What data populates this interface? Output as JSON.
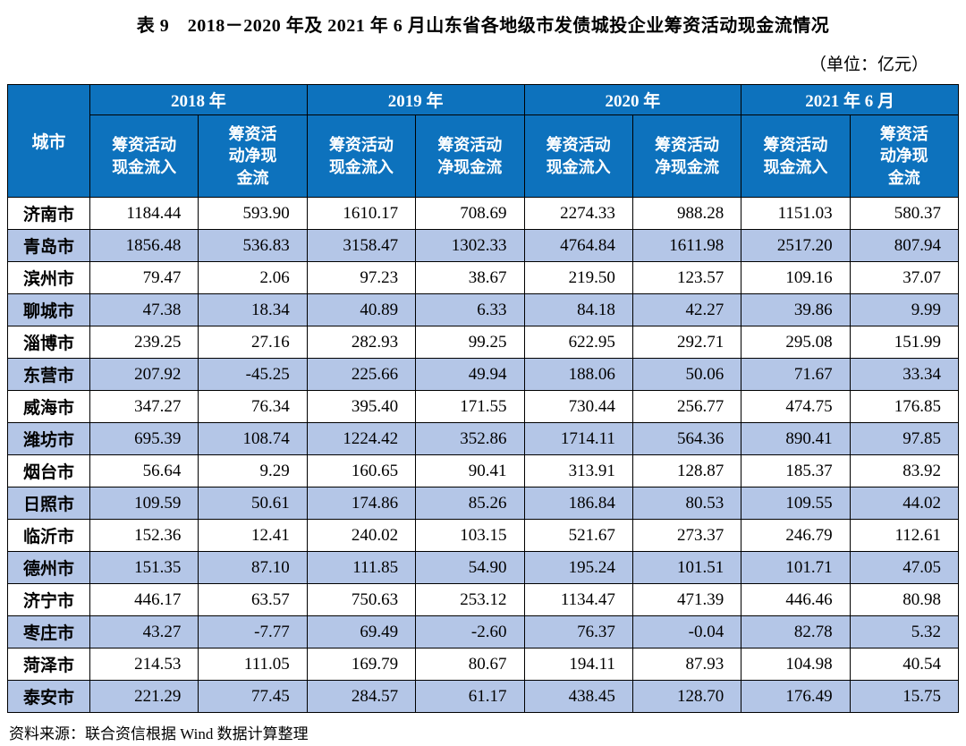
{
  "title": "表 9　2018－2020 年及 2021 年 6 月山东省各地级市发债城投企业筹资活动现金流情况",
  "unit_note": "（单位：亿元）",
  "source_note": "资料来源：联合资信根据 Wind 数据计算整理",
  "colors": {
    "header_bg": "#0d72bd",
    "stripe_bg": "#b4c6e7",
    "border": "#000000",
    "header_text": "#ffffff",
    "body_text": "#000000"
  },
  "table": {
    "city_header": "城市",
    "year_groups": [
      {
        "label": "2018 年",
        "sub_labels": [
          "筹资活动\n现金流入",
          "筹资活\n动净现\n金流"
        ]
      },
      {
        "label": "2019 年",
        "sub_labels": [
          "筹资活动\n现金流入",
          "筹资活动\n净现金流"
        ]
      },
      {
        "label": "2020 年",
        "sub_labels": [
          "筹资活动\n现金流入",
          "筹资活动\n净现金流"
        ]
      },
      {
        "label": "2021 年 6 月",
        "sub_labels": [
          "筹资活动\n现金流入",
          "筹资活\n动净现\n金流"
        ]
      }
    ],
    "rows": [
      {
        "city": "济南市",
        "values": [
          "1184.44",
          "593.90",
          "1610.17",
          "708.69",
          "2274.33",
          "988.28",
          "1151.03",
          "580.37"
        ]
      },
      {
        "city": "青岛市",
        "values": [
          "1856.48",
          "536.83",
          "3158.47",
          "1302.33",
          "4764.84",
          "1611.98",
          "2517.20",
          "807.94"
        ]
      },
      {
        "city": "滨州市",
        "values": [
          "79.47",
          "2.06",
          "97.23",
          "38.67",
          "219.50",
          "123.57",
          "109.16",
          "37.07"
        ]
      },
      {
        "city": "聊城市",
        "values": [
          "47.38",
          "18.34",
          "40.89",
          "6.33",
          "84.18",
          "42.27",
          "39.86",
          "9.99"
        ]
      },
      {
        "city": "淄博市",
        "values": [
          "239.25",
          "27.16",
          "282.93",
          "99.25",
          "622.95",
          "292.71",
          "295.08",
          "151.99"
        ]
      },
      {
        "city": "东营市",
        "values": [
          "207.92",
          "-45.25",
          "225.66",
          "49.94",
          "188.06",
          "50.06",
          "71.67",
          "33.34"
        ]
      },
      {
        "city": "威海市",
        "values": [
          "347.27",
          "76.34",
          "395.40",
          "171.55",
          "730.44",
          "256.77",
          "474.75",
          "176.85"
        ]
      },
      {
        "city": "潍坊市",
        "values": [
          "695.39",
          "108.74",
          "1224.42",
          "352.86",
          "1714.11",
          "564.36",
          "890.41",
          "97.85"
        ]
      },
      {
        "city": "烟台市",
        "values": [
          "56.64",
          "9.29",
          "160.65",
          "90.41",
          "313.91",
          "128.87",
          "185.37",
          "83.92"
        ]
      },
      {
        "city": "日照市",
        "values": [
          "109.59",
          "50.61",
          "174.86",
          "85.26",
          "186.84",
          "80.53",
          "109.55",
          "44.02"
        ]
      },
      {
        "city": "临沂市",
        "values": [
          "152.36",
          "12.41",
          "240.02",
          "103.15",
          "521.67",
          "273.37",
          "246.79",
          "112.61"
        ]
      },
      {
        "city": "德州市",
        "values": [
          "151.35",
          "87.10",
          "111.85",
          "54.90",
          "195.24",
          "101.51",
          "101.71",
          "47.05"
        ]
      },
      {
        "city": "济宁市",
        "values": [
          "446.17",
          "63.57",
          "750.63",
          "253.12",
          "1134.47",
          "471.39",
          "446.46",
          "80.98"
        ]
      },
      {
        "city": "枣庄市",
        "values": [
          "43.27",
          "-7.77",
          "69.49",
          "-2.60",
          "76.37",
          "-0.04",
          "82.78",
          "5.32"
        ]
      },
      {
        "city": "菏泽市",
        "values": [
          "214.53",
          "111.05",
          "169.79",
          "80.67",
          "194.11",
          "87.93",
          "104.98",
          "40.54"
        ]
      },
      {
        "city": "泰安市",
        "values": [
          "221.29",
          "77.45",
          "284.57",
          "61.17",
          "438.45",
          "128.70",
          "176.49",
          "15.75"
        ]
      }
    ]
  }
}
